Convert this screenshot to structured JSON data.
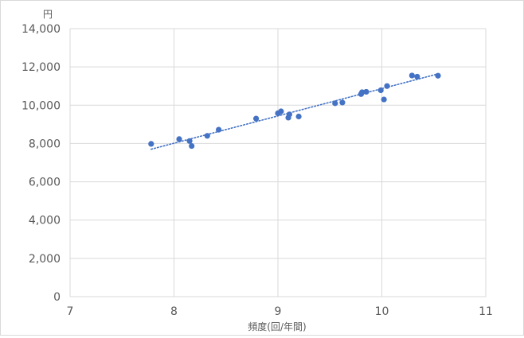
{
  "chart_data": {
    "type": "scatter",
    "title": "",
    "xlabel": "頻度(回/年間)",
    "ylabel": "円",
    "xlim": [
      7,
      11
    ],
    "ylim": [
      0,
      14000
    ],
    "x_ticks": [
      "7",
      "8",
      "9",
      "10",
      "11"
    ],
    "y_ticks": [
      "0",
      "2,000",
      "4,000",
      "6,000",
      "8,000",
      "10,000",
      "12,000",
      "14,000"
    ],
    "x_tick_values": [
      7,
      8,
      9,
      10,
      11
    ],
    "y_tick_values": [
      0,
      2000,
      4000,
      6000,
      8000,
      10000,
      12000,
      14000
    ],
    "grid": true,
    "legend": "none",
    "marker_color": "#4472C4",
    "trendline": {
      "type": "linear",
      "style": "dotted",
      "color": "#4472C4",
      "x": [
        7.78,
        10.55
      ],
      "y": [
        7700,
        11650
      ]
    },
    "points": [
      {
        "x": 7.78,
        "y": 7980
      },
      {
        "x": 8.05,
        "y": 8230
      },
      {
        "x": 8.15,
        "y": 8130
      },
      {
        "x": 8.17,
        "y": 7870
      },
      {
        "x": 8.32,
        "y": 8400
      },
      {
        "x": 8.43,
        "y": 8720
      },
      {
        "x": 8.79,
        "y": 9300
      },
      {
        "x": 9.0,
        "y": 9580
      },
      {
        "x": 9.03,
        "y": 9680
      },
      {
        "x": 9.1,
        "y": 9350
      },
      {
        "x": 9.11,
        "y": 9520
      },
      {
        "x": 9.2,
        "y": 9410
      },
      {
        "x": 9.55,
        "y": 10100
      },
      {
        "x": 9.62,
        "y": 10140
      },
      {
        "x": 9.8,
        "y": 10580
      },
      {
        "x": 9.81,
        "y": 10680
      },
      {
        "x": 9.85,
        "y": 10700
      },
      {
        "x": 9.99,
        "y": 10780
      },
      {
        "x": 10.02,
        "y": 10300
      },
      {
        "x": 10.05,
        "y": 11000
      },
      {
        "x": 10.29,
        "y": 11550
      },
      {
        "x": 10.34,
        "y": 11490
      },
      {
        "x": 10.54,
        "y": 11540
      }
    ]
  }
}
